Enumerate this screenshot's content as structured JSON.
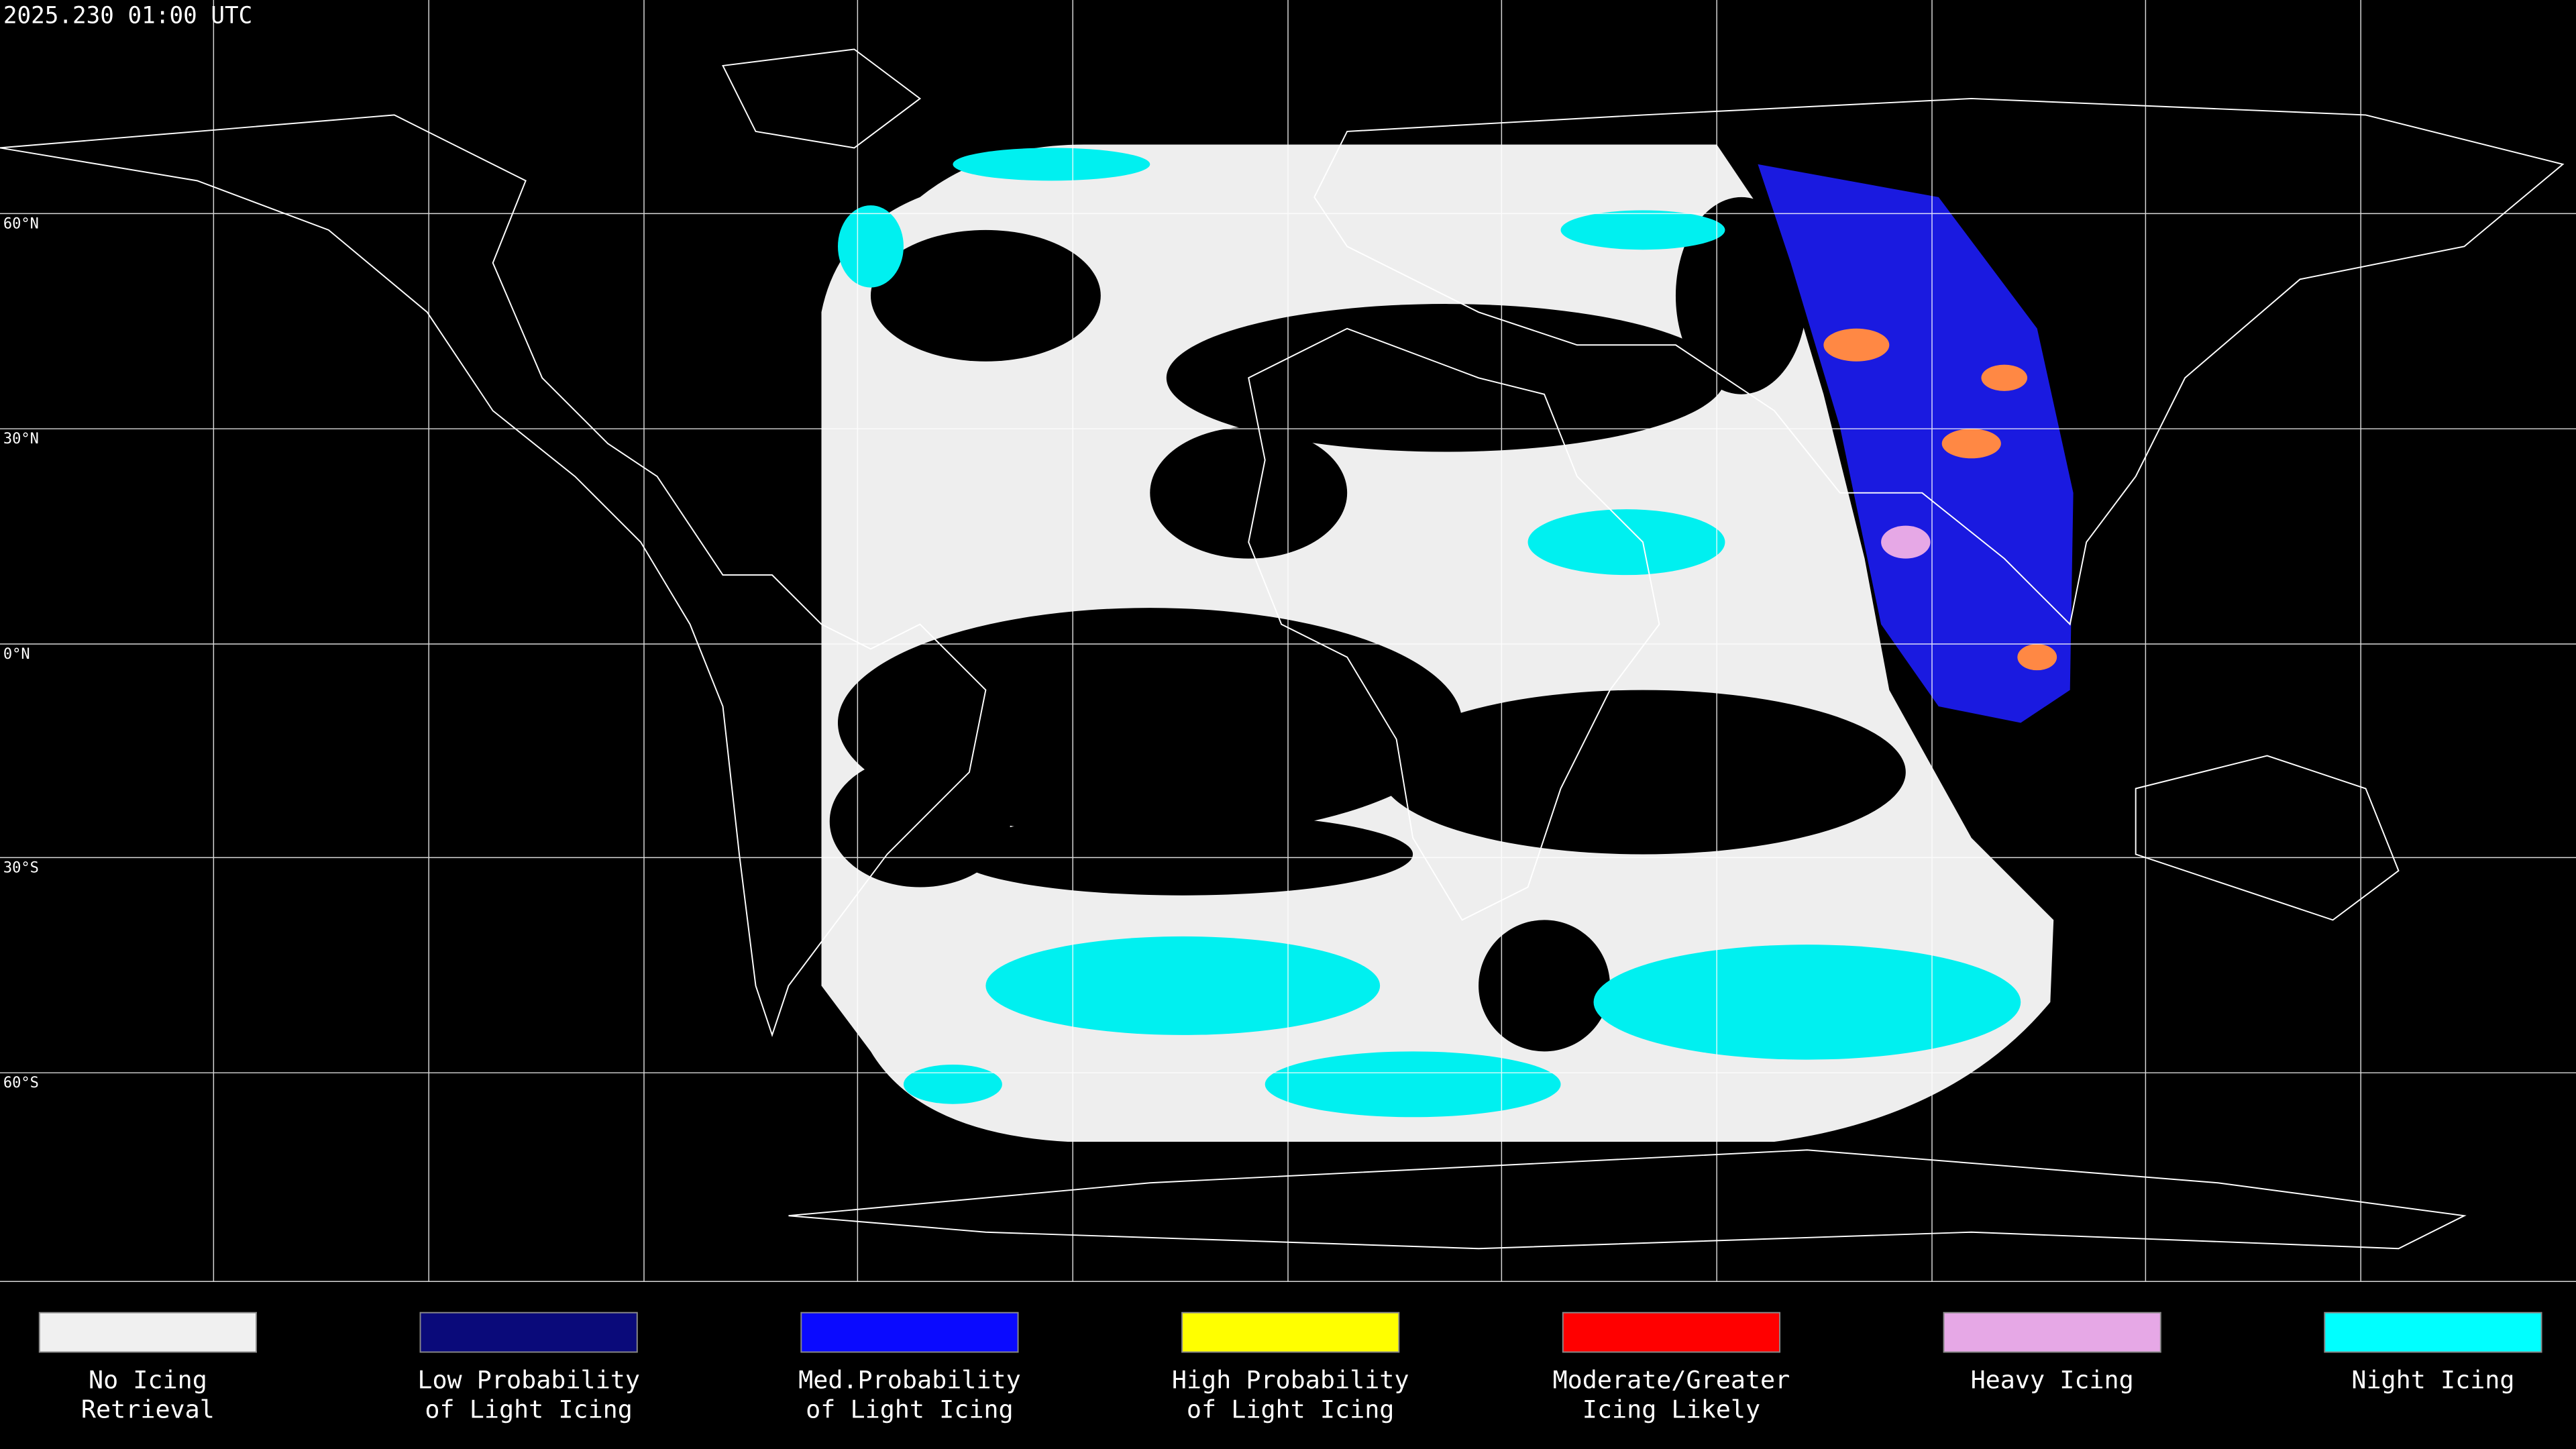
{
  "header": {
    "timestamp": "2025.230 01:00 UTC"
  },
  "latitude_labels": [
    "60°N",
    "30°N",
    "0°N",
    "30°S",
    "60°S"
  ],
  "legend": [
    {
      "lines": [
        "No Icing",
        "Retrieval"
      ],
      "color": "#f0f0f0"
    },
    {
      "lines": [
        "Low Probability",
        "of Light Icing"
      ],
      "color": "#0a0a7a"
    },
    {
      "lines": [
        "Med.Probability",
        "of Light Icing"
      ],
      "color": "#0a0aff"
    },
    {
      "lines": [
        "High Probability",
        "of Light Icing"
      ],
      "color": "#ffff00"
    },
    {
      "lines": [
        "Moderate/Greater",
        "Icing Likely"
      ],
      "color": "#ff0000"
    },
    {
      "lines": [
        "Heavy Icing"
      ],
      "color": "#e6a8e6"
    },
    {
      "lines": [
        "Night Icing"
      ],
      "color": "#00ffff"
    }
  ]
}
